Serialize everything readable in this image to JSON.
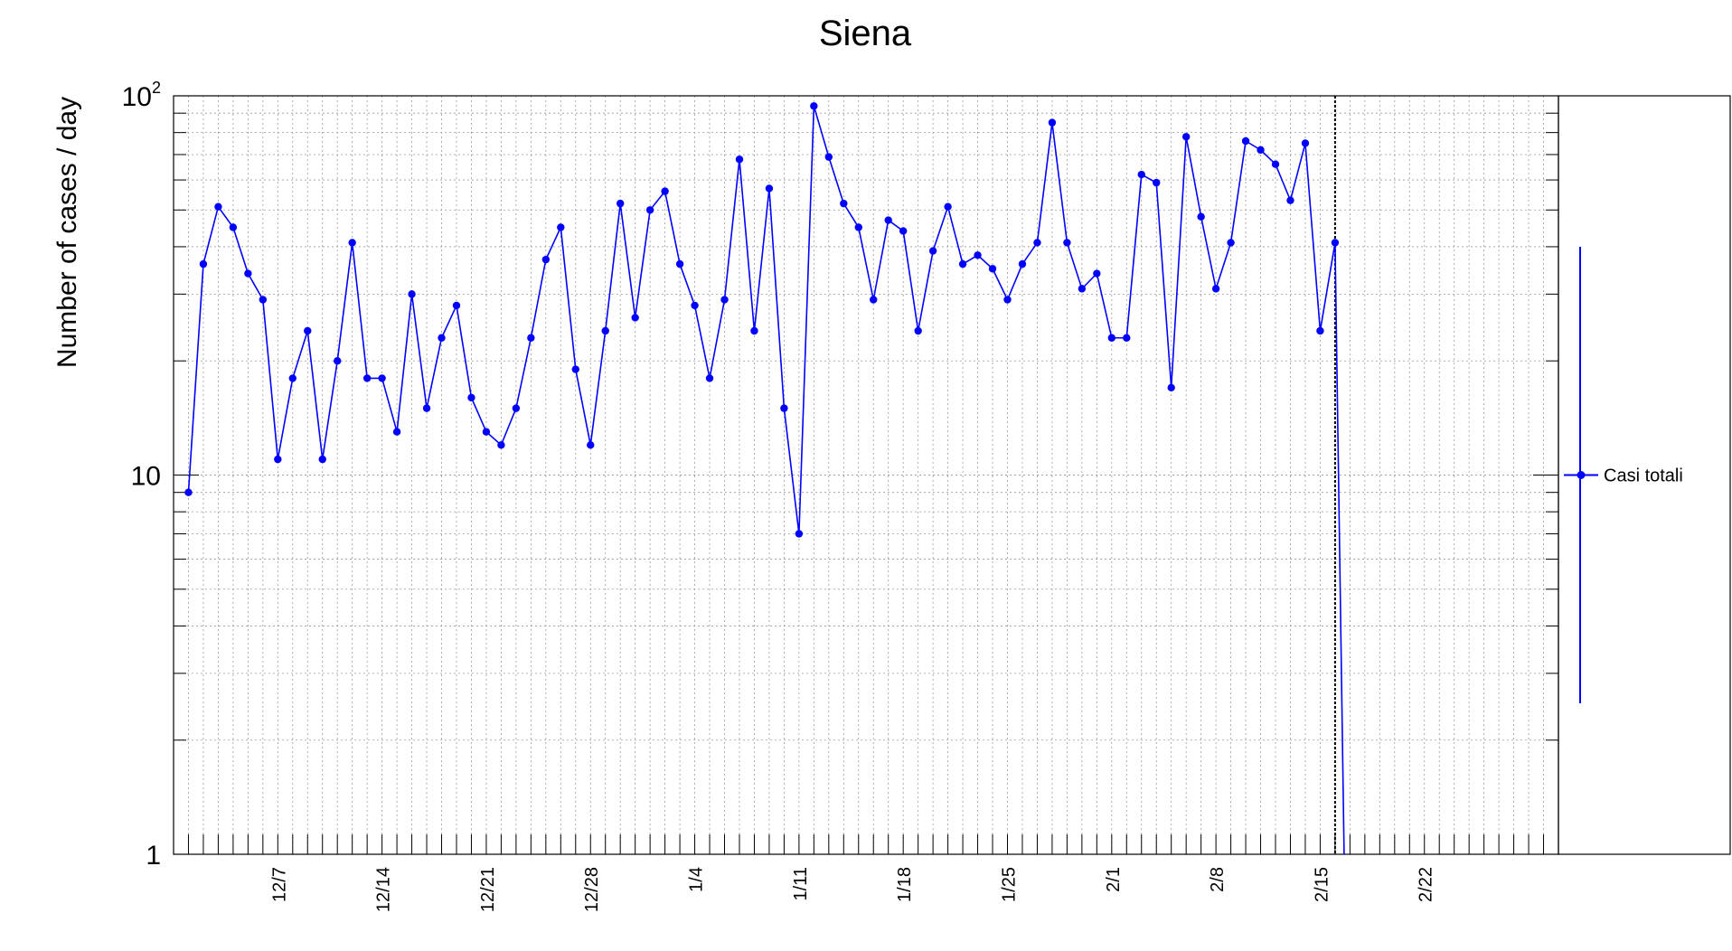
{
  "chart_data": {
    "type": "line",
    "title": "Siena",
    "ylabel": "Number of cases / day",
    "xlabel": "",
    "yscale": "log",
    "ylim": [
      1,
      100
    ],
    "ytick_labels": [
      {
        "value": 1,
        "base": "1",
        "exp": ""
      },
      {
        "value": 10,
        "base": "10",
        "exp": ""
      },
      {
        "value": 100,
        "base": "10",
        "exp": "2"
      }
    ],
    "x_range": [
      "2020-11-30",
      "2021-03-03"
    ],
    "x_ticks": [
      {
        "date": "2020-12-07",
        "label": "12/7"
      },
      {
        "date": "2020-12-14",
        "label": "12/14"
      },
      {
        "date": "2020-12-21",
        "label": "12/21"
      },
      {
        "date": "2020-12-28",
        "label": "12/28"
      },
      {
        "date": "2021-01-04",
        "label": "1/4"
      },
      {
        "date": "2021-01-11",
        "label": "1/11"
      },
      {
        "date": "2021-01-18",
        "label": "1/18"
      },
      {
        "date": "2021-01-25",
        "label": "1/25"
      },
      {
        "date": "2021-02-01",
        "label": "2/1"
      },
      {
        "date": "2021-02-08",
        "label": "2/8"
      },
      {
        "date": "2021-02-15",
        "label": "2/15"
      },
      {
        "date": "2021-02-22",
        "label": "2/22"
      }
    ],
    "grid": true,
    "legend": {
      "position": "right",
      "entries": [
        "Casi totali"
      ]
    },
    "colors": {
      "series": "#0000ff",
      "frame": "#000000",
      "grid": "#999999"
    },
    "marker_date": "2021-02-16",
    "series": [
      {
        "name": "Casi totali",
        "x": [
          "2020-12-01",
          "2020-12-02",
          "2020-12-03",
          "2020-12-04",
          "2020-12-05",
          "2020-12-06",
          "2020-12-07",
          "2020-12-08",
          "2020-12-09",
          "2020-12-10",
          "2020-12-11",
          "2020-12-12",
          "2020-12-13",
          "2020-12-14",
          "2020-12-15",
          "2020-12-16",
          "2020-12-17",
          "2020-12-18",
          "2020-12-19",
          "2020-12-20",
          "2020-12-21",
          "2020-12-22",
          "2020-12-23",
          "2020-12-24",
          "2020-12-25",
          "2020-12-26",
          "2020-12-27",
          "2020-12-28",
          "2020-12-29",
          "2020-12-30",
          "2020-12-31",
          "2021-01-01",
          "2021-01-02",
          "2021-01-03",
          "2021-01-04",
          "2021-01-05",
          "2021-01-06",
          "2021-01-07",
          "2021-01-08",
          "2021-01-09",
          "2021-01-10",
          "2021-01-11",
          "2021-01-12",
          "2021-01-13",
          "2021-01-14",
          "2021-01-15",
          "2021-01-16",
          "2021-01-17",
          "2021-01-18",
          "2021-01-19",
          "2021-01-20",
          "2021-01-21",
          "2021-01-22",
          "2021-01-23",
          "2021-01-24",
          "2021-01-25",
          "2021-01-26",
          "2021-01-27",
          "2021-01-28",
          "2021-01-29",
          "2021-01-30",
          "2021-01-31",
          "2021-02-01",
          "2021-02-02",
          "2021-02-03",
          "2021-02-04",
          "2021-02-05",
          "2021-02-06",
          "2021-02-07",
          "2021-02-08",
          "2021-02-09",
          "2021-02-10",
          "2021-02-11",
          "2021-02-12",
          "2021-02-13",
          "2021-02-14",
          "2021-02-15",
          "2021-02-16"
        ],
        "values": [
          9,
          36,
          51,
          45,
          34,
          29,
          11,
          18,
          24,
          11,
          20,
          41,
          18,
          18,
          13,
          30,
          15,
          23,
          28,
          16,
          13,
          12,
          15,
          23,
          37,
          45,
          19,
          12,
          24,
          52,
          26,
          50,
          56,
          36,
          28,
          18,
          29,
          68,
          24,
          57,
          15,
          7,
          94,
          69,
          52,
          45,
          29,
          47,
          44,
          24,
          39,
          51,
          36,
          38,
          35,
          29,
          36,
          41,
          85,
          41,
          31,
          34,
          23,
          23,
          62,
          59,
          17,
          78,
          48,
          31,
          41,
          76,
          72,
          66,
          53,
          75,
          24,
          41
        ]
      }
    ]
  }
}
